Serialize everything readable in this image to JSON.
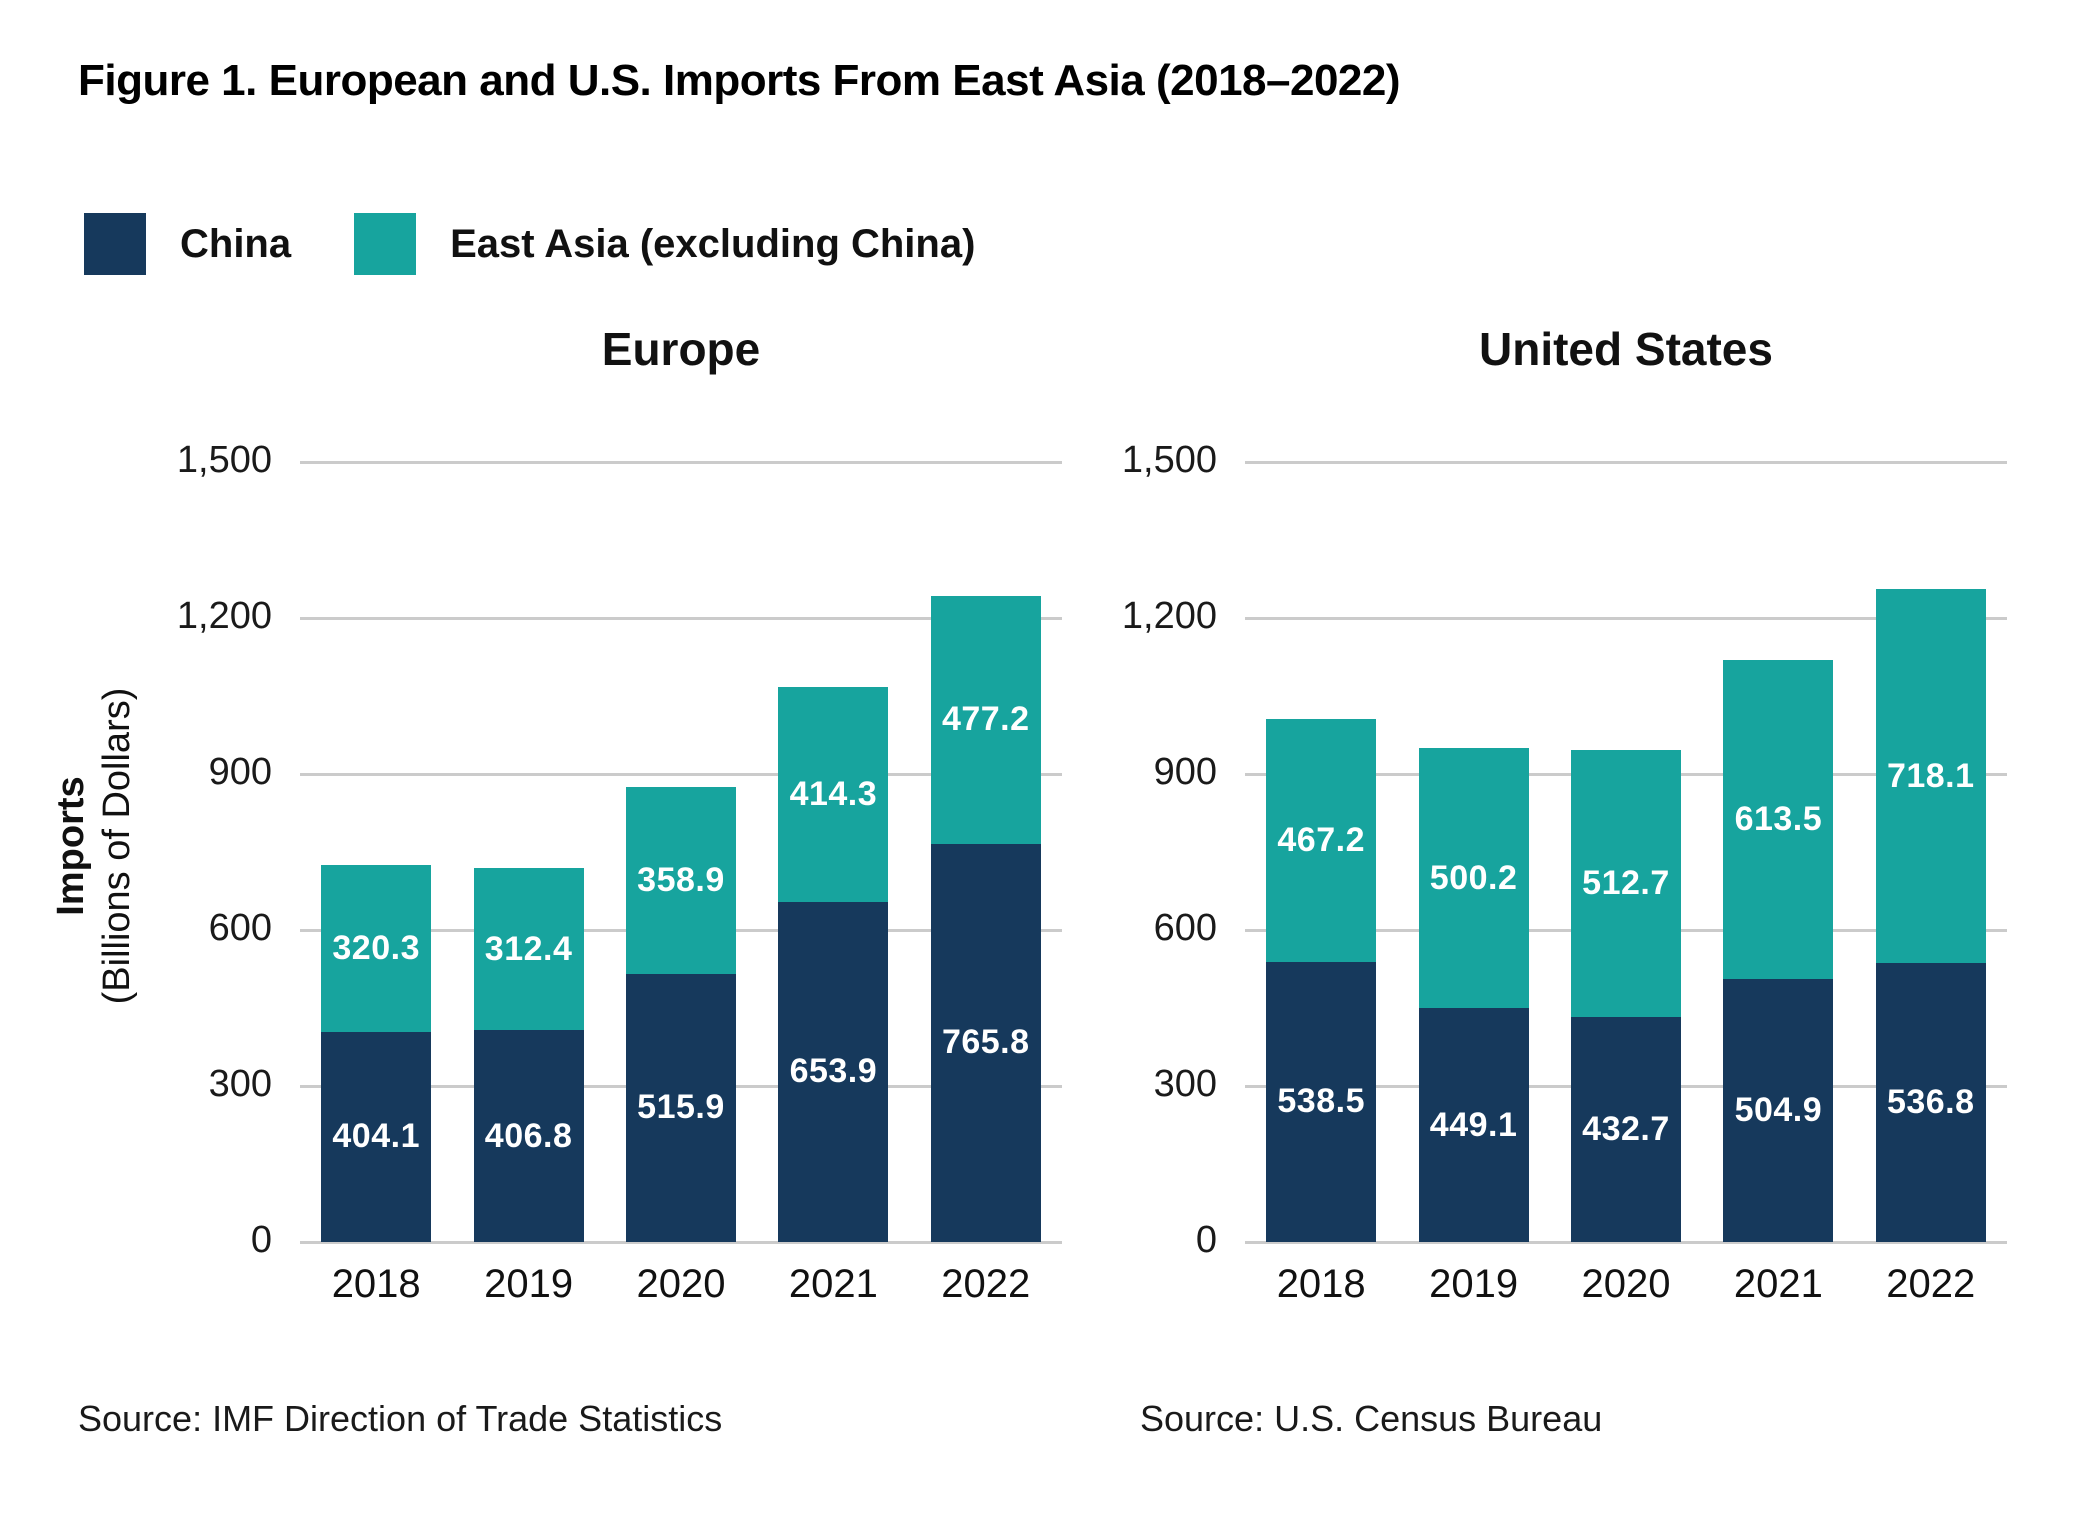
{
  "title": "Figure 1. European and U.S. Imports From East Asia (2018–2022)",
  "legend": [
    {
      "label": "China",
      "color": "#16395C"
    },
    {
      "label": "East Asia (excluding China)",
      "color": "#17A49E"
    }
  ],
  "y_axis": {
    "label_bold": "Imports",
    "label_rest": "(Billions of Dollars)",
    "ticks": [
      {
        "label": "0",
        "value": 0
      },
      {
        "label": "300",
        "value": 300
      },
      {
        "label": "600",
        "value": 600
      },
      {
        "label": "900",
        "value": 900
      },
      {
        "label": "1,200",
        "value": 1200
      },
      {
        "label": "1,500",
        "value": 1500
      }
    ]
  },
  "chart_data": [
    {
      "type": "bar",
      "stacked": true,
      "title": "Europe",
      "categories": [
        "2018",
        "2019",
        "2020",
        "2021",
        "2022"
      ],
      "series": [
        {
          "name": "China",
          "color": "#16395C",
          "values": [
            404.1,
            406.8,
            515.9,
            653.9,
            765.8
          ]
        },
        {
          "name": "East Asia (excluding China)",
          "color": "#17A49E",
          "values": [
            320.3,
            312.4,
            358.9,
            414.3,
            477.2
          ]
        }
      ],
      "ylim": [
        0,
        1500
      ],
      "grid": true,
      "source": "Source: IMF Direction of Trade Statistics"
    },
    {
      "type": "bar",
      "stacked": true,
      "title": "United States",
      "categories": [
        "2018",
        "2019",
        "2020",
        "2021",
        "2022"
      ],
      "series": [
        {
          "name": "China",
          "color": "#16395C",
          "values": [
            538.5,
            449.1,
            432.7,
            504.9,
            536.8
          ]
        },
        {
          "name": "East Asia (excluding China)",
          "color": "#17A49E",
          "values": [
            467.2,
            500.2,
            512.7,
            613.5,
            718.1
          ]
        }
      ],
      "ylim": [
        0,
        1500
      ],
      "grid": true,
      "source": "Source: U.S. Census Bureau"
    }
  ]
}
